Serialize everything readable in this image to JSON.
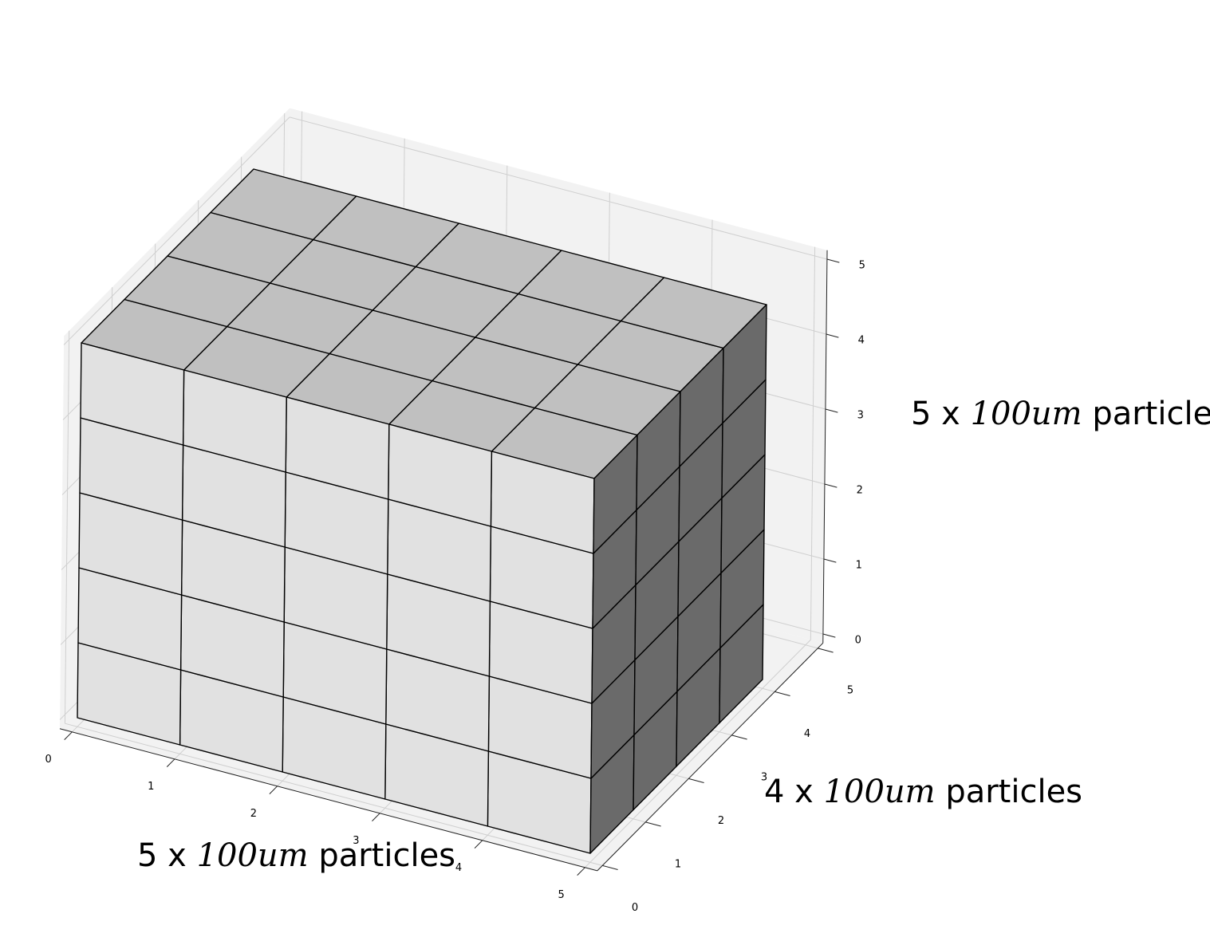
{
  "figure": {
    "axis_x": {
      "ticks": [
        "0",
        "1",
        "2",
        "3",
        "4",
        "5"
      ]
    },
    "axis_y": {
      "ticks": [
        "0",
        "1",
        "2",
        "3",
        "4",
        "5"
      ]
    },
    "axis_z": {
      "ticks": [
        "0",
        "1",
        "2",
        "3",
        "4",
        "5"
      ]
    },
    "block": {
      "nx": 5,
      "ny": 4,
      "nz": 5
    },
    "colors": {
      "top": "#c0c0c0",
      "front": "#e1e1e1",
      "side": "#6a6a6a",
      "pane": "#f2f2f2",
      "grid": "#cfcfcf",
      "edge": "#000000"
    }
  },
  "labels": {
    "vertical": {
      "prefix": "5 x ",
      "unit": "100um",
      "suffix": " particles"
    },
    "depth": {
      "prefix": "4 x ",
      "unit": "100um",
      "suffix": " particles"
    },
    "width": {
      "prefix": "5 x ",
      "unit": "100um",
      "suffix": " particles"
    }
  }
}
